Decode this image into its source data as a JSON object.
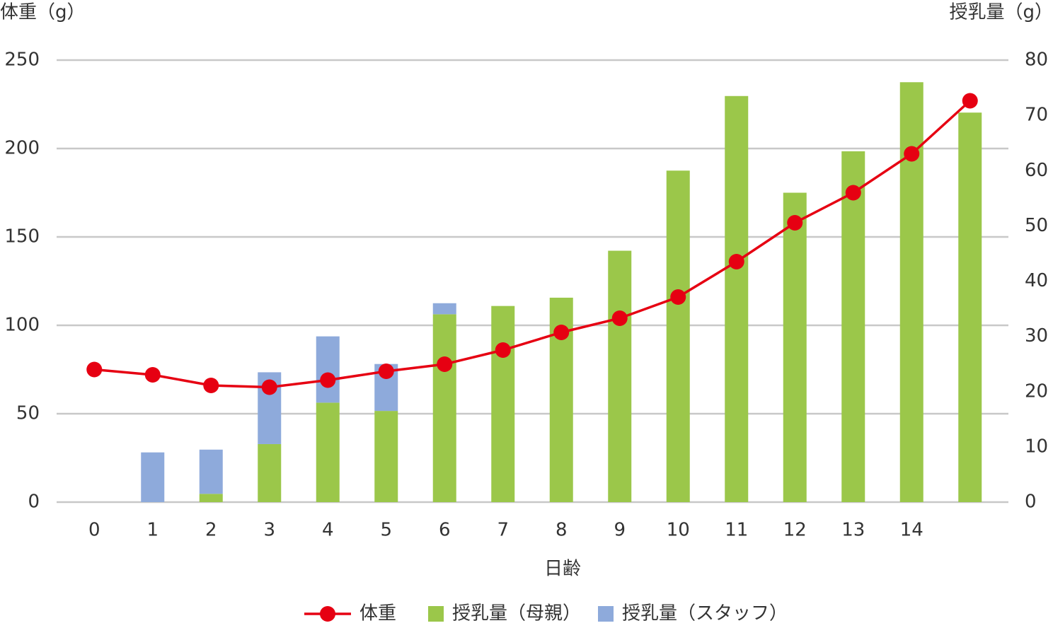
{
  "chart_data": {
    "type": "bar-line",
    "y_label": "体重（g）",
    "y2_label": "授乳量（g）",
    "x_label": "日齢",
    "categories": [
      "0",
      "1",
      "2",
      "3",
      "4",
      "5",
      "6",
      "7",
      "8",
      "9",
      "10",
      "11",
      "12",
      "13",
      "14",
      null
    ],
    "series": [
      {
        "name": "体重",
        "type": "line",
        "color": "#e60012",
        "axis": "y",
        "values": [
          75,
          72,
          66,
          65,
          69,
          74,
          78,
          86,
          96,
          104,
          116,
          136,
          158,
          175,
          197,
          227
        ]
      },
      {
        "name": "授乳量（母親）",
        "type": "bar",
        "color": "#9bc74a",
        "axis": "y2",
        "values": [
          0,
          0,
          1.5,
          10.5,
          18,
          16.5,
          34,
          35.5,
          37,
          45.5,
          60,
          73.5,
          56,
          63.5,
          76,
          70.5
        ]
      },
      {
        "name": "授乳量（スタッフ）",
        "type": "bar",
        "color": "#8eaadb",
        "axis": "y2",
        "values": [
          0,
          9,
          8,
          13,
          12,
          8.5,
          2,
          0,
          0,
          0,
          0,
          0,
          0,
          0,
          0,
          0
        ]
      }
    ],
    "ylim": [
      0,
      250
    ],
    "yticks": [
      0,
      50,
      100,
      150,
      200,
      250
    ],
    "y2lim": [
      0,
      80
    ],
    "y2ticks": [
      0,
      10,
      20,
      30,
      40,
      50,
      60,
      70,
      80
    ],
    "grid": true,
    "legend": "bottom"
  }
}
